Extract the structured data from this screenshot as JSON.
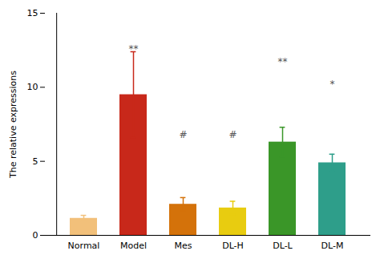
{
  "chart_data": {
    "type": "bar",
    "categories": [
      "Normal",
      "Model",
      "Mes",
      "DL-H",
      "DL-L",
      "DL-M"
    ],
    "values": [
      1.15,
      9.5,
      2.1,
      1.85,
      6.3,
      4.9
    ],
    "errors": [
      0.2,
      2.9,
      0.45,
      0.45,
      1.0,
      0.58
    ],
    "colors": [
      "#F2C07A",
      "#C8281A",
      "#D4720A",
      "#E8CC10",
      "#3A9628",
      "#2E9E8A"
    ],
    "ylabel": "The relative expressions",
    "ylim": [
      0,
      15
    ],
    "yticks": [
      0,
      5,
      10,
      15
    ],
    "annotations": [
      {
        "x": "Model",
        "y": 12.4,
        "text": "**"
      },
      {
        "x": "Mes",
        "y": 6.6,
        "text": "#"
      },
      {
        "x": "DL-H",
        "y": 6.6,
        "text": "#"
      },
      {
        "x": "DL-L",
        "y": 11.5,
        "text": "**"
      },
      {
        "x": "DL-M",
        "y": 10.0,
        "text": "*"
      }
    ]
  }
}
